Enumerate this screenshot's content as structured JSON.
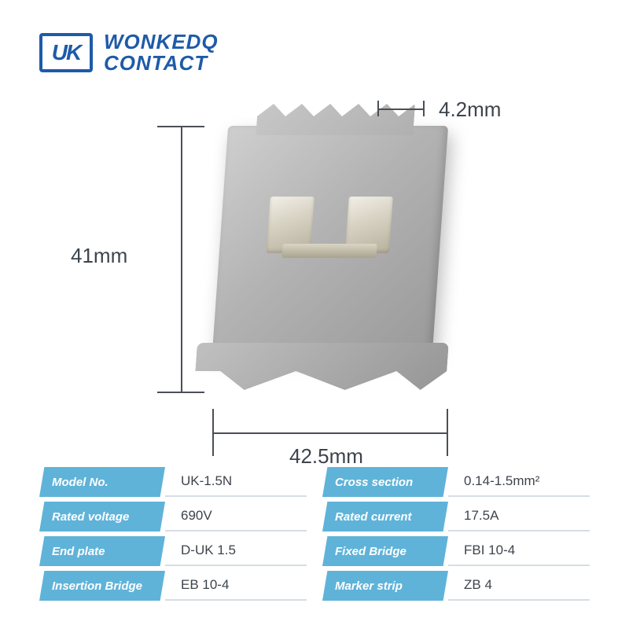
{
  "brand": {
    "badge": "UK",
    "line1": "WONKEDQ",
    "line2": "CONTACT",
    "color": "#1e5ba8"
  },
  "dimensions": {
    "height": "41mm",
    "width": "42.5mm",
    "thickness": "4.2mm"
  },
  "table": {
    "tab_color": "#5fb3d9",
    "rows": [
      {
        "label": "Model No.",
        "value": "UK-1.5N"
      },
      {
        "label": "Cross section",
        "value": "0.14-1.5mm²"
      },
      {
        "label": "Rated voltage",
        "value": "690V"
      },
      {
        "label": "Rated current",
        "value": "17.5A"
      },
      {
        "label": "End plate",
        "value": "D-UK 1.5"
      },
      {
        "label": "Fixed Bridge",
        "value": "FBI 10-4"
      },
      {
        "label": "Insertion Bridge",
        "value": "EB 10-4"
      },
      {
        "label": "Marker strip",
        "value": "ZB 4"
      }
    ]
  }
}
